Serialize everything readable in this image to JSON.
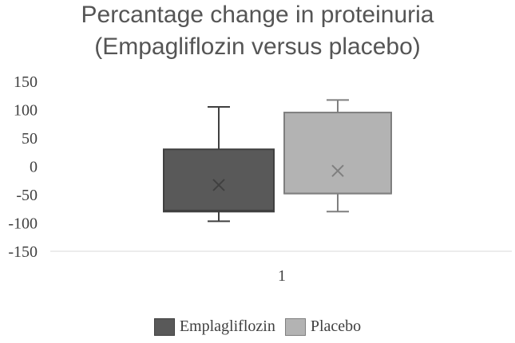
{
  "chart_data": {
    "type": "box",
    "title_lines": [
      "Percantage change in proteinuria",
      "(Empagliflozin versus placebo)"
    ],
    "categories": [
      "1"
    ],
    "ylim": [
      -150,
      150
    ],
    "yticks": [
      150,
      100,
      50,
      0,
      -50,
      -100,
      -150
    ],
    "grid": false,
    "legend_position": "bottom",
    "series": [
      {
        "name": "Emplagliflozin",
        "color": "#595959",
        "border": "#404040",
        "whisker_low": -97,
        "q1": -80,
        "median": -78,
        "q3": 30,
        "whisker_high": 105,
        "mean": -33
      },
      {
        "name": "Placebo",
        "color": "#b3b3b3",
        "border": "#7f7f7f",
        "whisker_low": -80,
        "q1": -48,
        "median": -48,
        "q3": 95,
        "whisker_high": 117,
        "mean": -8
      }
    ]
  }
}
